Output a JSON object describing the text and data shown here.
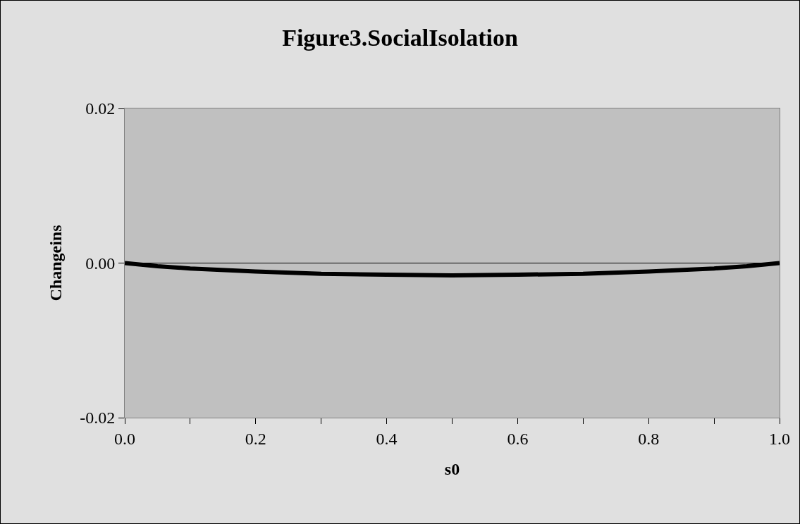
{
  "chart_data": {
    "type": "line",
    "title": "Figure3.SocialIsolation",
    "xlabel": "s0",
    "ylabel": "Changeins",
    "x": [
      0,
      0.05,
      0.1,
      0.2,
      0.3,
      0.4,
      0.5,
      0.6,
      0.7,
      0.8,
      0.9,
      0.95,
      1.0
    ],
    "series": [
      {
        "color": "#000000",
        "values": [
          0,
          -0.0004,
          -0.0007,
          -0.0011,
          -0.0014,
          -0.0015,
          -0.0016,
          -0.0015,
          -0.0014,
          -0.0011,
          -0.0007,
          -0.0004,
          0
        ]
      }
    ],
    "xlim": [
      0,
      1.0
    ],
    "xticks": [
      {
        "value": 0,
        "label": "0.0"
      },
      {
        "value": 0.1,
        "label": null
      },
      {
        "value": 0.2,
        "label": "0.2"
      },
      {
        "value": 0.3,
        "label": null
      },
      {
        "value": 0.4,
        "label": "0.4"
      },
      {
        "value": 0.5,
        "label": null
      },
      {
        "value": 0.6,
        "label": "0.6"
      },
      {
        "value": 0.7,
        "label": null
      },
      {
        "value": 0.8,
        "label": "0.8"
      },
      {
        "value": 0.9,
        "label": null
      },
      {
        "value": 1.0,
        "label": "1.0"
      }
    ],
    "ylim": [
      -0.02,
      0.02
    ],
    "yticks": [
      {
        "value": -0.02,
        "label": "-0.02"
      },
      {
        "value": 0,
        "label": "0.00"
      },
      {
        "value": 0.02,
        "label": "0.02"
      }
    ],
    "ref_lines": [
      {
        "axis": "y",
        "value": 0,
        "color": "#000000"
      }
    ],
    "marker": "none",
    "line_style": "solid"
  }
}
